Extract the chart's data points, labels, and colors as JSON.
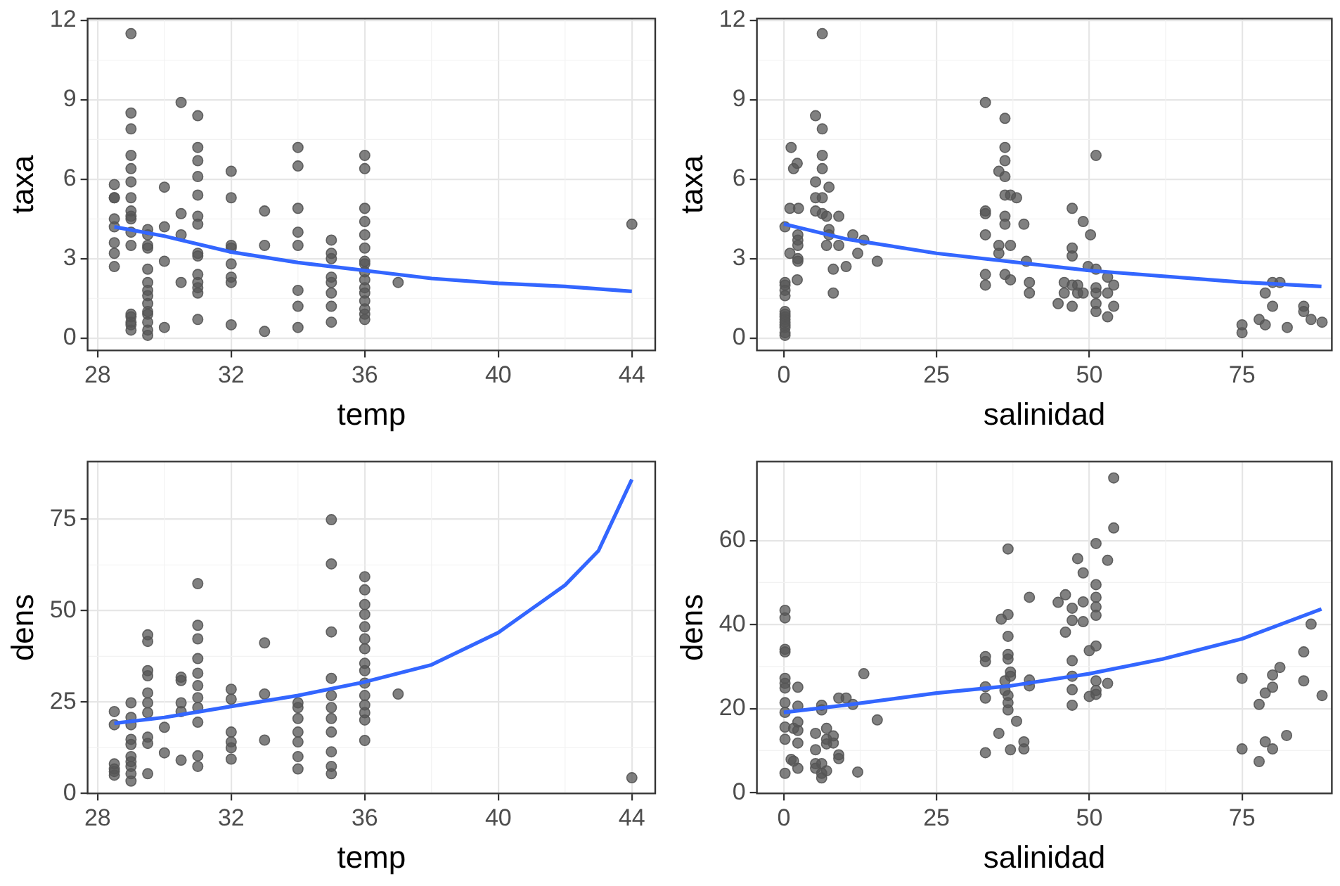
{
  "chart_data": [
    {
      "type": "scatter",
      "xlabel": "temp",
      "ylabel": "taxa",
      "xlim": [
        27.7,
        44.7
      ],
      "ylim": [
        -0.47,
        12.07
      ],
      "xticks": [
        28,
        32,
        36,
        40,
        44
      ],
      "yticks": [
        0,
        3,
        6,
        9,
        12
      ],
      "grid": true,
      "legend": false,
      "marker": "circle",
      "series": [
        {
          "color": "#555555",
          "x": [
            28.5,
            28.5,
            28.5,
            28.5,
            28.5,
            28.5,
            28.5,
            28.5,
            29,
            29,
            29,
            29,
            29,
            29,
            29,
            29,
            29,
            29,
            29,
            29,
            29,
            29,
            29,
            29,
            29,
            29.5,
            29.5,
            29.5,
            29.5,
            29.5,
            29.5,
            29.5,
            29.5,
            29.5,
            29.5,
            29.5,
            29.5,
            29.5,
            29.5,
            30,
            30,
            30,
            30,
            30.5,
            30.5,
            30.5,
            30.5,
            31,
            31,
            31,
            31,
            31,
            31,
            31,
            31,
            31,
            31,
            31,
            31,
            31,
            31,
            32,
            32,
            32,
            32,
            32,
            32,
            32,
            32,
            33,
            33,
            33,
            34,
            34,
            34,
            34,
            34,
            34,
            34,
            34,
            35,
            35,
            35,
            35,
            35,
            35,
            35,
            35,
            36,
            36,
            36,
            36,
            36,
            36,
            36,
            36,
            36,
            36,
            36,
            36,
            36,
            36,
            36,
            36,
            37,
            44
          ],
          "values": [
            5.8,
            5.3,
            5.3,
            4.5,
            4.2,
            3.6,
            3.2,
            2.7,
            11.5,
            8.5,
            7.9,
            6.9,
            6.4,
            5.9,
            5.3,
            4.8,
            4.6,
            4.5,
            4.0,
            3.5,
            0.9,
            0.8,
            0.6,
            0.5,
            0.3,
            4.1,
            3.9,
            3.5,
            3.4,
            2.6,
            2.1,
            1.8,
            1.6,
            1.3,
            1.0,
            0.9,
            0.6,
            0.3,
            0.1,
            5.7,
            4.2,
            2.9,
            0.4,
            8.9,
            4.7,
            3.9,
            2.1,
            8.4,
            7.2,
            6.7,
            6.1,
            5.4,
            4.6,
            4.3,
            3.2,
            3.1,
            2.4,
            2.1,
            1.9,
            1.7,
            0.7,
            6.3,
            5.3,
            3.5,
            3.4,
            2.8,
            2.3,
            2.1,
            0.5,
            4.8,
            3.5,
            0.25,
            7.2,
            6.5,
            4.9,
            4.0,
            3.5,
            1.8,
            1.2,
            0.4,
            3.7,
            3.2,
            3.0,
            2.3,
            2.1,
            1.7,
            1.2,
            0.6,
            6.9,
            6.4,
            4.9,
            4.4,
            3.9,
            3.4,
            2.9,
            2.8,
            2.5,
            2.2,
            1.9,
            1.7,
            1.4,
            1.1,
            0.9,
            0.7,
            2.1,
            4.3
          ]
        },
        {
          "type": "line",
          "color": "#3366ff",
          "marker": "none",
          "x": [
            28.5,
            30,
            32,
            34,
            36,
            38,
            40,
            42,
            44
          ],
          "values": [
            4.2,
            3.85,
            3.25,
            2.85,
            2.55,
            2.25,
            2.07,
            1.95,
            1.76
          ]
        }
      ]
    },
    {
      "type": "scatter",
      "xlabel": "salinidad",
      "ylabel": "taxa",
      "xlim": [
        -4.4,
        89.7
      ],
      "ylim": [
        -0.47,
        12.07
      ],
      "xticks": [
        0,
        25,
        50,
        75
      ],
      "yticks": [
        0,
        3,
        6,
        9,
        12
      ],
      "grid": true,
      "legend": false,
      "marker": "circle",
      "series": [
        {
          "color": "#555555",
          "x": [
            0.2,
            0.2,
            0.2,
            0.2,
            0.2,
            0.2,
            0.2,
            0.2,
            0.2,
            0.2,
            0.2,
            0.2,
            0.2,
            0.2,
            1,
            1.2,
            1.6,
            2.2,
            2.4,
            1,
            2.3,
            2.3,
            2.3,
            2.3,
            2.3,
            2.2,
            5.2,
            5.2,
            5.2,
            5.2,
            6.3,
            6.3,
            6.3,
            6.3,
            6.3,
            6.3,
            7.0,
            7.0,
            7.4,
            7.4,
            7.4,
            8.1,
            8.1,
            9.0,
            9.0,
            10.2,
            11.3,
            12.1,
            13.1,
            15.3,
            33,
            33,
            33,
            33,
            33,
            33,
            35.2,
            35.2,
            35.2,
            36.2,
            36.2,
            36.2,
            36.2,
            36.2,
            36.2,
            36.2,
            36.2,
            37.1,
            37.1,
            37.1,
            38.1,
            39.3,
            39.7,
            40.2,
            40.2,
            44.9,
            45.9,
            45.9,
            47.2,
            47.2,
            47.2,
            47.2,
            47.2,
            48.1,
            48.1,
            49.0,
            49.0,
            49.8,
            50.2,
            51.1,
            51.1,
            51.1,
            51.1,
            51.1,
            51.1,
            53.0,
            53.0,
            53.0,
            54.0,
            54.0,
            75.0,
            75.0,
            77.8,
            78.8,
            78.8,
            80.0,
            80.0,
            81.2,
            82.4,
            85.1,
            85.1,
            86.3,
            88.1
          ],
          "values": [
            4.2,
            2.1,
            2.0,
            1.8,
            1.6,
            1.0,
            0.9,
            0.8,
            0.7,
            0.6,
            0.5,
            0.4,
            0.2,
            0.1,
            4.9,
            7.2,
            6.4,
            6.6,
            4.9,
            3.2,
            3.9,
            3.7,
            3.5,
            3.0,
            2.9,
            2.2,
            8.4,
            5.9,
            5.3,
            4.8,
            11.5,
            7.9,
            6.9,
            6.4,
            5.3,
            4.7,
            4.6,
            3.5,
            5.7,
            4.1,
            3.9,
            2.6,
            1.7,
            4.6,
            3.5,
            2.7,
            3.9,
            3.2,
            3.7,
            2.9,
            8.9,
            4.8,
            4.7,
            3.9,
            2.4,
            2.0,
            6.3,
            3.5,
            3.2,
            8.3,
            7.2,
            6.7,
            6.1,
            5.4,
            4.6,
            4.3,
            2.4,
            5.4,
            3.5,
            2.2,
            5.3,
            4.3,
            2.9,
            2.1,
            1.7,
            1.3,
            2.1,
            1.7,
            4.9,
            3.4,
            3.1,
            2.0,
            1.2,
            2.0,
            1.7,
            4.4,
            1.7,
            2.7,
            3.9,
            6.9,
            2.6,
            1.9,
            1.7,
            1.3,
            1.0,
            2.3,
            1.7,
            0.8,
            2.0,
            1.2,
            0.5,
            0.2,
            0.7,
            1.7,
            0.5,
            2.1,
            1.2,
            2.1,
            0.4,
            1.2,
            1.0,
            0.7,
            0.6
          ]
        },
        {
          "type": "line",
          "color": "#3366ff",
          "marker": "none",
          "x": [
            0,
            10,
            25,
            50,
            75,
            88
          ],
          "values": [
            4.31,
            3.75,
            3.2,
            2.55,
            2.11,
            1.95
          ]
        }
      ]
    },
    {
      "type": "scatter",
      "xlabel": "temp",
      "ylabel": "dens",
      "xlim": [
        27.7,
        44.7
      ],
      "ylim": [
        0,
        90.8
      ],
      "xticks": [
        28,
        32,
        36,
        40,
        44
      ],
      "yticks": [
        0,
        25,
        50,
        75
      ],
      "grid": true,
      "legend": false,
      "marker": "circle",
      "series": [
        {
          "color": "#555555",
          "x": [
            28.5,
            28.5,
            28.5,
            28.5,
            28.5,
            28.5,
            29,
            29,
            29,
            29,
            29,
            29,
            29,
            29,
            29,
            29,
            29.5,
            29.5,
            29.5,
            29.5,
            29.5,
            29.5,
            29.5,
            29.5,
            29.5,
            29.5,
            30,
            30,
            30.5,
            30.5,
            30.5,
            30.5,
            30.5,
            31,
            31,
            31,
            31,
            31,
            31,
            31,
            31,
            31,
            31,
            31,
            32,
            32,
            32,
            32,
            32,
            32,
            33,
            33,
            33,
            34,
            34,
            34,
            34,
            34,
            34,
            34,
            35,
            35,
            35,
            35,
            35,
            35,
            35,
            35,
            35,
            35,
            35,
            36,
            36,
            36,
            36,
            36,
            36,
            36,
            36,
            36,
            36,
            36,
            36,
            36,
            36,
            36,
            37,
            44
          ],
          "values": [
            22.4,
            18.8,
            8.1,
            6.7,
            6.0,
            5.0,
            24.8,
            20.8,
            18.8,
            14.8,
            13.4,
            10.1,
            8.7,
            7.4,
            5.4,
            3.4,
            43.4,
            41.6,
            33.6,
            32.2,
            27.5,
            24.8,
            22.1,
            15.4,
            13.7,
            5.4,
            18.1,
            11.1,
            31.8,
            30.9,
            24.8,
            22.4,
            9.1,
            57.4,
            46.0,
            42.3,
            36.9,
            32.9,
            29.5,
            26.2,
            23.5,
            19.5,
            10.3,
            7.4,
            28.5,
            25.8,
            16.8,
            14.1,
            12.5,
            9.4,
            41.2,
            27.2,
            14.6,
            24.8,
            23.5,
            20.5,
            16.8,
            14.1,
            10.1,
            6.7,
            74.9,
            62.8,
            44.2,
            31.5,
            26.8,
            23.5,
            20.5,
            16.8,
            11.4,
            7.4,
            5.4,
            59.3,
            55.7,
            51.7,
            49.0,
            45.6,
            42.3,
            39.6,
            35.6,
            33.6,
            30.2,
            26.8,
            24.2,
            22.1,
            20.1,
            14.5,
            27.2,
            4.3
          ]
        },
        {
          "type": "line",
          "color": "#3366ff",
          "marker": "none",
          "x": [
            28.5,
            30,
            32,
            34,
            36,
            38,
            40,
            42,
            43,
            44
          ],
          "values": [
            19.2,
            20.8,
            23.8,
            26.8,
            30.5,
            35.2,
            44.0,
            57.0,
            66.4,
            85.9
          ]
        }
      ]
    },
    {
      "type": "scatter",
      "xlabel": "salinidad",
      "ylabel": "dens",
      "xlim": [
        -4.4,
        89.7
      ],
      "ylim": [
        -0.2,
        78.8
      ],
      "xticks": [
        0,
        25,
        50,
        75
      ],
      "yticks": [
        0,
        20,
        40,
        60
      ],
      "grid": true,
      "legend": false,
      "marker": "circle",
      "series": [
        {
          "color": "#555555",
          "x": [
            0.2,
            0.2,
            0.2,
            0.2,
            0.2,
            0.2,
            0.2,
            0.2,
            0.2,
            0.2,
            0.2,
            0.2,
            1.2,
            2.3,
            2.3,
            2.3,
            2.3,
            2.3,
            2.3,
            1.6,
            1.6,
            5.2,
            5.2,
            5.2,
            5.2,
            6.2,
            6.2,
            6.2,
            6.2,
            6.2,
            7.0,
            7.0,
            7.0,
            7.0,
            8.1,
            8.1,
            9.0,
            9.0,
            9.0,
            10.2,
            11.3,
            12.1,
            13.1,
            15.3,
            33,
            33,
            33,
            33,
            33,
            35.2,
            35.6,
            36.2,
            36.2,
            36.7,
            36.7,
            36.7,
            36.7,
            36.7,
            36.7,
            36.7,
            36.7,
            37.1,
            37.1,
            37.1,
            38.1,
            39.3,
            39.3,
            40.2,
            40.2,
            40.2,
            44.9,
            46.1,
            46.1,
            47.2,
            47.2,
            47.2,
            47.2,
            47.2,
            47.2,
            48.1,
            49.0,
            49.0,
            49.0,
            50.0,
            50.0,
            51.1,
            51.1,
            51.1,
            51.1,
            51.1,
            51.1,
            51.1,
            51.1,
            51.1,
            53.0,
            53.0,
            54.0,
            54.0,
            75.0,
            75.0,
            77.8,
            77.8,
            78.8,
            78.8,
            80.0,
            80.0,
            80.0,
            81.2,
            82.3,
            85.1,
            85.1,
            86.3,
            88.1
          ],
          "values": [
            43.4,
            41.6,
            34.1,
            33.5,
            27.2,
            26.0,
            24.9,
            21.4,
            19.1,
            15.6,
            12.7,
            4.6,
            7.9,
            25.1,
            20.6,
            16.8,
            14.8,
            11.8,
            5.8,
            15.3,
            7.5,
            14.1,
            10.2,
            6.9,
            5.8,
            20.8,
            19.7,
            6.9,
            4.6,
            3.5,
            15.3,
            12.7,
            11.6,
            5.2,
            13.5,
            11.8,
            22.5,
            9.0,
            8.1,
            22.5,
            21.0,
            4.9,
            28.3,
            17.3,
            32.4,
            31.2,
            22.5,
            25.2,
            9.5,
            14.1,
            41.3,
            26.6,
            24.3,
            58.0,
            42.4,
            37.2,
            32.9,
            31.8,
            23.1,
            21.4,
            19.7,
            28.7,
            27.7,
            10.2,
            17.0,
            10.4,
            12.1,
            46.5,
            26.8,
            25.4,
            45.3,
            47.1,
            38.2,
            43.9,
            41.0,
            31.4,
            27.7,
            24.5,
            20.8,
            55.7,
            52.3,
            45.4,
            40.7,
            33.8,
            22.9,
            59.3,
            49.5,
            46.5,
            44.2,
            42.2,
            34.9,
            26.6,
            24.3,
            23.4,
            55.3,
            26.0,
            74.9,
            63.0,
            27.2,
            10.4,
            21.0,
            7.4,
            23.7,
            12.1,
            25.1,
            28.0,
            10.4,
            29.8,
            13.6,
            33.5,
            26.6,
            40.1,
            23.1
          ]
        },
        {
          "type": "line",
          "color": "#3366ff",
          "marker": "none",
          "x": [
            0,
            10,
            25,
            37,
            50,
            62,
            75,
            88
          ],
          "values": [
            19.1,
            20.8,
            23.7,
            25.4,
            28.3,
            31.8,
            36.6,
            43.7
          ]
        }
      ]
    }
  ]
}
